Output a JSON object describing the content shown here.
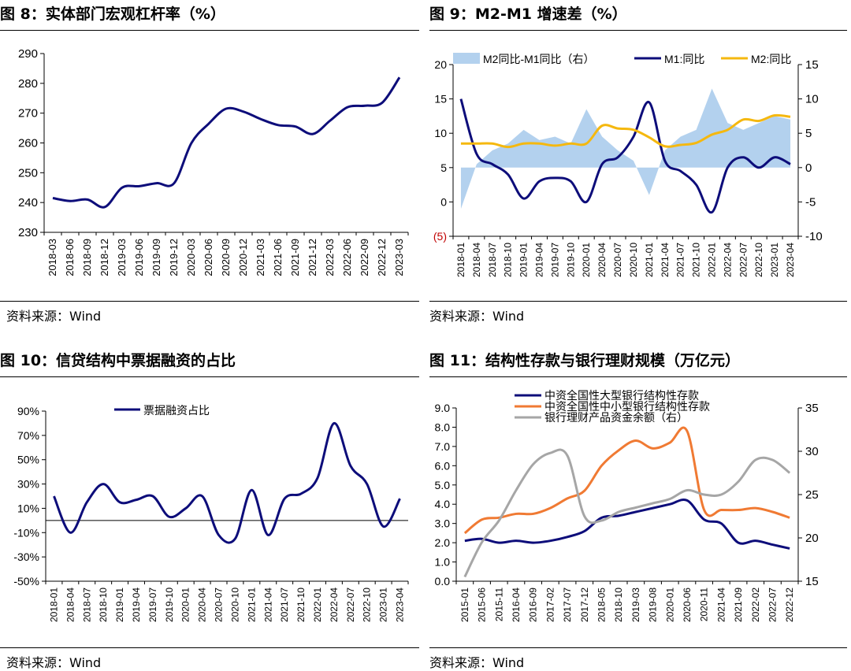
{
  "sources": [
    "资料来源：Wind",
    "资料来源：Wind",
    "资料来源：Wind",
    "资料来源：Wind"
  ],
  "colors": {
    "navy": "#0d0d7a",
    "gold": "#f5b80f",
    "lightblue": "#b3d1ee",
    "orange": "#f07a33",
    "gray": "#a6a6a6"
  },
  "chart_data": [
    {
      "type": "line",
      "title": "图 8：实体部门宏观杠杆率（%）",
      "ylim": [
        230,
        290
      ],
      "yticks": [
        230,
        240,
        250,
        260,
        270,
        280,
        290
      ],
      "grid": false,
      "categories": [
        "2018-03",
        "2018-06",
        "2018-09",
        "2018-12",
        "2019-03",
        "2019-06",
        "2019-09",
        "2019-12",
        "2020-03",
        "2020-06",
        "2020-09",
        "2020-12",
        "2021-03",
        "2021-06",
        "2021-09",
        "2021-12",
        "2022-03",
        "2022-06",
        "2022-09",
        "2022-12",
        "2023-03"
      ],
      "series": [
        {
          "values": [
            241.5,
            240.5,
            241.0,
            238.5,
            245.0,
            245.5,
            246.5,
            246.5,
            260.0,
            266.5,
            271.5,
            270.5,
            268.0,
            266.0,
            265.5,
            263.0,
            267.5,
            272.0,
            272.5,
            273.5,
            282.0
          ]
        }
      ]
    },
    {
      "type": "line",
      "title": "图 9：M2-M1 增速差（%）",
      "ylim": [
        -5,
        20
      ],
      "yticks": [
        -5,
        0,
        5,
        10,
        15,
        20
      ],
      "ytick_labels": [
        "(5)",
        "0",
        "5",
        "10",
        "15",
        "20"
      ],
      "y2lim": [
        -10,
        15
      ],
      "y2ticks": [
        -10,
        -5,
        0,
        5,
        10,
        15
      ],
      "legend": "top",
      "categories": [
        "2018-01",
        "2018-04",
        "2018-07",
        "2018-10",
        "2019-01",
        "2019-04",
        "2019-07",
        "2019-10",
        "2020-01",
        "2020-04",
        "2020-07",
        "2020-10",
        "2021-01",
        "2021-04",
        "2021-07",
        "2021-10",
        "2022-01",
        "2022-04",
        "2022-07",
        "2022-10",
        "2023-01",
        "2023-04"
      ],
      "series": [
        {
          "name": "M2同比-M1同比（右）",
          "type": "area",
          "axis": "right",
          "values": [
            -6.0,
            0.5,
            2.5,
            3.5,
            5.5,
            4.0,
            4.5,
            3.5,
            8.5,
            4.5,
            2.5,
            1.0,
            -4.0,
            2.5,
            4.5,
            5.5,
            11.5,
            6.5,
            5.5,
            6.5,
            7.5,
            7.0
          ]
        },
        {
          "name": "M1:同比",
          "type": "line",
          "axis": "left",
          "values": [
            15.0,
            7.0,
            5.5,
            4.0,
            0.5,
            3.0,
            3.5,
            3.0,
            0.0,
            5.5,
            6.5,
            9.5,
            14.5,
            6.0,
            4.5,
            2.5,
            -1.5,
            5.0,
            6.5,
            5.0,
            6.5,
            5.5
          ]
        },
        {
          "name": "M2:同比",
          "type": "line",
          "axis": "left",
          "values": [
            8.5,
            8.5,
            8.5,
            8.0,
            8.5,
            8.5,
            8.2,
            8.5,
            8.5,
            11.1,
            10.7,
            10.5,
            9.4,
            8.1,
            8.3,
            8.6,
            9.8,
            10.5,
            12.0,
            11.8,
            12.6,
            12.4
          ]
        }
      ]
    },
    {
      "type": "line",
      "title": "图 10：信贷结构中票据融资的占比",
      "ylim": [
        -50,
        90
      ],
      "yticks": [
        -50,
        -30,
        -10,
        10,
        30,
        50,
        70,
        90
      ],
      "ytick_labels": [
        "-50%",
        "-30%",
        "-10%",
        "10%",
        "30%",
        "50%",
        "70%",
        "90%"
      ],
      "legend": "top-center",
      "categories": [
        "2018-01",
        "2018-04",
        "2018-07",
        "2018-10",
        "2019-01",
        "2019-04",
        "2019-07",
        "2019-10",
        "2020-01",
        "2020-04",
        "2020-07",
        "2020-10",
        "2021-01",
        "2021-04",
        "2021-07",
        "2021-10",
        "2022-01",
        "2022-04",
        "2022-07",
        "2022-10",
        "2023-01",
        "2023-04"
      ],
      "series": [
        {
          "name": "票据融资占比",
          "values": [
            20,
            -10,
            15,
            30,
            15,
            17,
            20,
            3,
            10,
            20,
            -12,
            -15,
            25,
            -12,
            18,
            22,
            35,
            80,
            45,
            30,
            -5,
            18
          ]
        }
      ]
    },
    {
      "type": "line",
      "title": "图 11：结构性存款与银行理财规模（万亿元）",
      "ylim": [
        0,
        9
      ],
      "yticks": [
        0.0,
        1.0,
        2.0,
        3.0,
        4.0,
        5.0,
        6.0,
        7.0,
        8.0,
        9.0
      ],
      "ytick_labels": [
        "0.0",
        "1.0",
        "2.0",
        "3.0",
        "4.0",
        "5.0",
        "6.0",
        "7.0",
        "8.0",
        "9.0"
      ],
      "y2lim": [
        15,
        35
      ],
      "y2ticks": [
        15,
        20,
        25,
        30,
        35
      ],
      "legend": "top",
      "categories": [
        "2015-01",
        "2015-06",
        "2015-11",
        "2016-04",
        "2016-09",
        "2017-02",
        "2017-07",
        "2017-12",
        "2018-05",
        "2018-10",
        "2019-03",
        "2019-08",
        "2020-01",
        "2020-06",
        "2020-11",
        "2021-04",
        "2021-09",
        "2022-02",
        "2022-07",
        "2022-12"
      ],
      "series": [
        {
          "name": "中资全国性大型银行结构性存款",
          "axis": "left",
          "values": [
            2.1,
            2.2,
            2.0,
            2.1,
            2.0,
            2.1,
            2.3,
            2.6,
            3.3,
            3.4,
            3.6,
            3.8,
            4.0,
            4.2,
            3.2,
            3.0,
            2.0,
            2.1,
            1.9,
            1.7
          ]
        },
        {
          "name": "中资全国性中小型银行结构性存款",
          "axis": "left",
          "values": [
            2.5,
            3.2,
            3.3,
            3.5,
            3.5,
            3.8,
            4.3,
            4.7,
            6.0,
            6.8,
            7.3,
            6.9,
            7.2,
            7.8,
            3.7,
            3.7,
            3.7,
            3.8,
            3.6,
            3.3
          ]
        },
        {
          "name": "银行理财产品资金余额（右）",
          "axis": "right",
          "values": [
            15.5,
            19.5,
            22.0,
            25.5,
            28.5,
            29.8,
            29.5,
            22.5,
            22.0,
            23.0,
            23.5,
            24.0,
            24.5,
            25.5,
            25.0,
            25.0,
            26.5,
            29.0,
            29.0,
            27.5
          ]
        }
      ]
    }
  ]
}
